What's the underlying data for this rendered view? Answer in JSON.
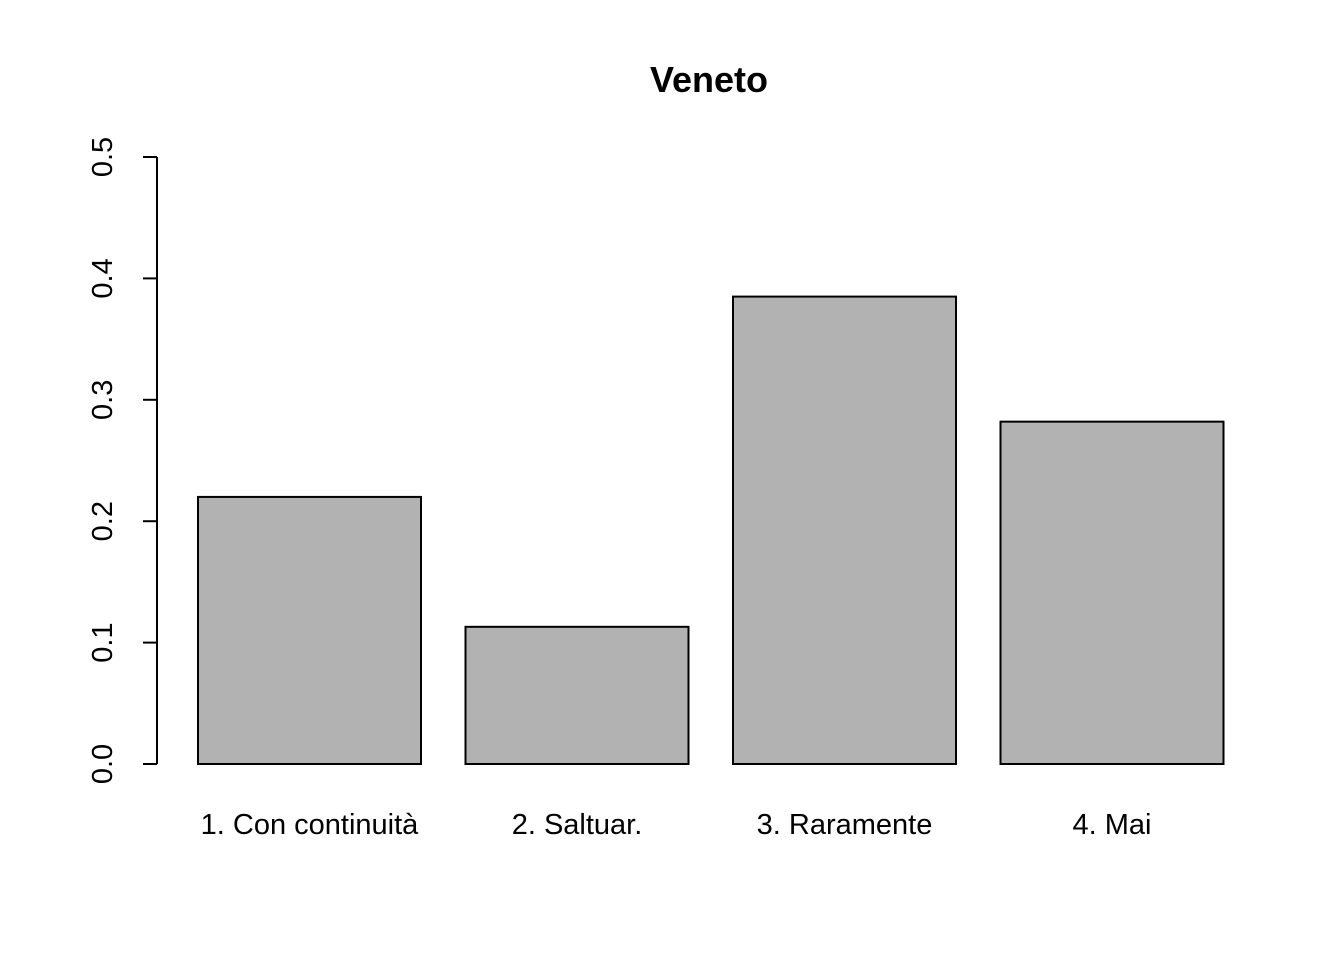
{
  "chart_data": {
    "type": "bar",
    "title": "Veneto",
    "xlabel": "",
    "ylabel": "",
    "categories": [
      "1. Con continuità",
      "2. Saltuar.",
      "3. Raramente",
      "4. Mai"
    ],
    "values": [
      0.22,
      0.113,
      0.385,
      0.282
    ],
    "ylim": [
      0,
      0.5
    ],
    "yticks": [
      "0.0",
      "0.1",
      "0.2",
      "0.3",
      "0.4",
      "0.5"
    ],
    "grid": false,
    "legend": "none",
    "colors": {
      "bar_fill": "#b2b2b2",
      "bar_stroke": "#000000",
      "axis": "#000000",
      "background": "#ffffff"
    }
  }
}
